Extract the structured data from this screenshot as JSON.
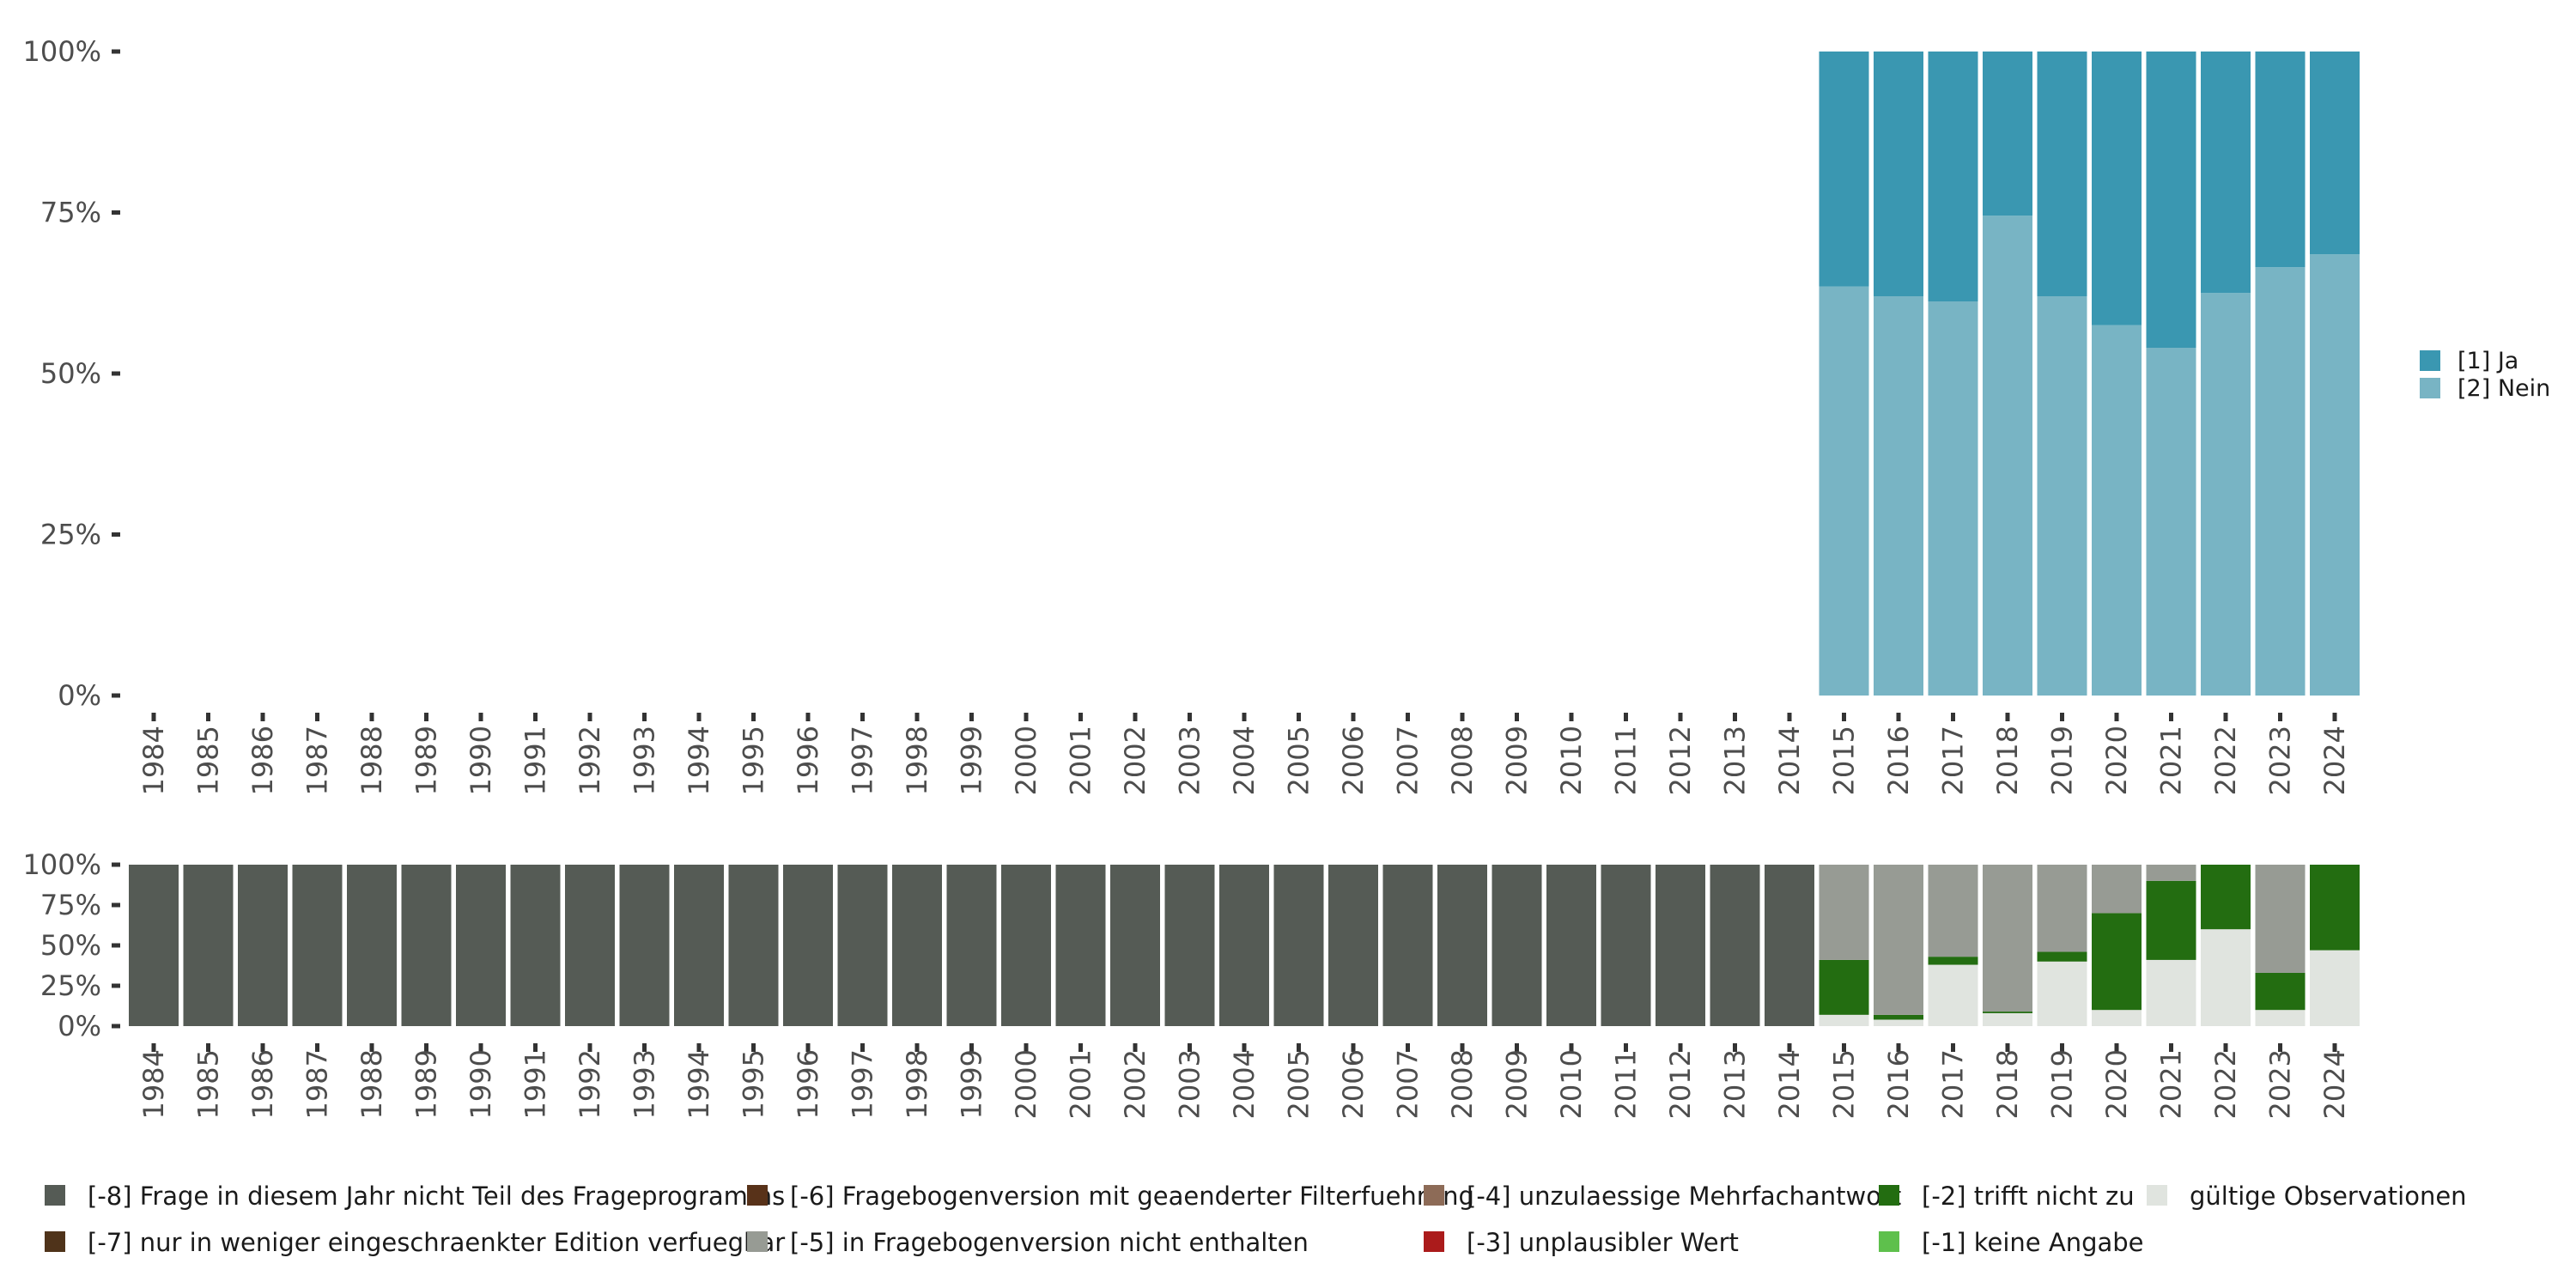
{
  "chart_data": [
    {
      "type": "bar",
      "stacked": true,
      "categories": [
        "1984",
        "1985",
        "1986",
        "1987",
        "1988",
        "1989",
        "1990",
        "1991",
        "1992",
        "1993",
        "1994",
        "1995",
        "1996",
        "1997",
        "1998",
        "1999",
        "2000",
        "2001",
        "2002",
        "2003",
        "2004",
        "2005",
        "2006",
        "2007",
        "2008",
        "2009",
        "2010",
        "2011",
        "2012",
        "2013",
        "2014",
        "2015",
        "2016",
        "2017",
        "2018",
        "2019",
        "2020",
        "2021",
        "2022",
        "2023",
        "2024"
      ],
      "ylim": [
        0,
        1
      ],
      "yticks": [
        {
          "value": 0,
          "label": "0%"
        },
        {
          "value": 0.25,
          "label": "25%"
        },
        {
          "value": 0.5,
          "label": "50%"
        },
        {
          "value": 0.75,
          "label": "75%"
        },
        {
          "value": 1,
          "label": "100%"
        }
      ],
      "series": [
        {
          "name": "[2] Nein",
          "color": "#78b4c4",
          "values": [
            0,
            0,
            0,
            0,
            0,
            0,
            0,
            0,
            0,
            0,
            0,
            0,
            0,
            0,
            0,
            0,
            0,
            0,
            0,
            0,
            0,
            0,
            0,
            0,
            0,
            0,
            0,
            0,
            0,
            0,
            0,
            0.635,
            0.62,
            0.612,
            0.745,
            0.62,
            0.575,
            0.54,
            0.625,
            0.665,
            0.685
          ]
        },
        {
          "name": "[1] Ja",
          "color": "#3a97b1",
          "values": [
            0,
            0,
            0,
            0,
            0,
            0,
            0,
            0,
            0,
            0,
            0,
            0,
            0,
            0,
            0,
            0,
            0,
            0,
            0,
            0,
            0,
            0,
            0,
            0,
            0,
            0,
            0,
            0,
            0,
            0,
            0,
            0.365,
            0.38,
            0.388,
            0.255,
            0.38,
            0.425,
            0.46,
            0.375,
            0.335,
            0.315
          ]
        }
      ],
      "legend": {
        "position": "right",
        "entries": [
          {
            "label": "[1] Ja",
            "color": "#3a97b1"
          },
          {
            "label": "[2] Nein",
            "color": "#78b4c4"
          }
        ]
      },
      "grid": false
    },
    {
      "type": "bar",
      "stacked": true,
      "categories": [
        "1984",
        "1985",
        "1986",
        "1987",
        "1988",
        "1989",
        "1990",
        "1991",
        "1992",
        "1993",
        "1994",
        "1995",
        "1996",
        "1997",
        "1998",
        "1999",
        "2000",
        "2001",
        "2002",
        "2003",
        "2004",
        "2005",
        "2006",
        "2007",
        "2008",
        "2009",
        "2010",
        "2011",
        "2012",
        "2013",
        "2014",
        "2015",
        "2016",
        "2017",
        "2018",
        "2019",
        "2020",
        "2021",
        "2022",
        "2023",
        "2024"
      ],
      "ylim": [
        0,
        1
      ],
      "yticks": [
        {
          "value": 0,
          "label": "0%"
        },
        {
          "value": 0.25,
          "label": "25%"
        },
        {
          "value": 0.5,
          "label": "50%"
        },
        {
          "value": 0.75,
          "label": "75%"
        },
        {
          "value": 1,
          "label": "100%"
        }
      ],
      "series": [
        {
          "name": "gültige Observationen",
          "color": "#e0e4df",
          "values": [
            0,
            0,
            0,
            0,
            0,
            0,
            0,
            0,
            0,
            0,
            0,
            0,
            0,
            0,
            0,
            0,
            0,
            0,
            0,
            0,
            0,
            0,
            0,
            0,
            0,
            0,
            0,
            0,
            0,
            0,
            0,
            0.07,
            0.04,
            0.38,
            0.08,
            0.4,
            0.1,
            0.41,
            0.6,
            0.1,
            0.47
          ]
        },
        {
          "name": "[-2] trifft nicht zu",
          "color": "#236d11",
          "values": [
            0,
            0,
            0,
            0,
            0,
            0,
            0,
            0,
            0,
            0,
            0,
            0,
            0,
            0,
            0,
            0,
            0,
            0,
            0,
            0,
            0,
            0,
            0,
            0,
            0,
            0,
            0,
            0,
            0,
            0,
            0,
            0.34,
            0.03,
            0.05,
            0.01,
            0.06,
            0.6,
            0.49,
            0.4,
            0.23,
            0.53
          ]
        },
        {
          "name": "[-5] in Fragebogenversion nicht enthalten",
          "color": "#979b94",
          "values": [
            0,
            0,
            0,
            0,
            0,
            0,
            0,
            0,
            0,
            0,
            0,
            0,
            0,
            0,
            0,
            0,
            0,
            0,
            0,
            0,
            0,
            0,
            0,
            0,
            0,
            0,
            0,
            0,
            0,
            0,
            0,
            0.59,
            0.93,
            0.57,
            0.91,
            0.54,
            0.3,
            0.1,
            0,
            0.67,
            0
          ]
        },
        {
          "name": "[-8] Frage in diesem Jahr nicht Teil des Frageprogramms",
          "color": "#555b55",
          "values": [
            1,
            1,
            1,
            1,
            1,
            1,
            1,
            1,
            1,
            1,
            1,
            1,
            1,
            1,
            1,
            1,
            1,
            1,
            1,
            1,
            1,
            1,
            1,
            1,
            1,
            1,
            1,
            1,
            1,
            1,
            1,
            0,
            0,
            0,
            0,
            0,
            0,
            0,
            0,
            0,
            0
          ]
        }
      ],
      "grid": false
    }
  ],
  "bottom_legend": [
    {
      "label": "[-8] Frage in diesem Jahr nicht Teil des Frageprogramms",
      "color": "#555b55"
    },
    {
      "label": "[-7] nur in weniger eingeschraenkter Edition verfuegbar",
      "color": "#4f331a"
    },
    {
      "label": "[-6] Fragebogenversion mit geaenderter Filterfuehrung",
      "color": "#583219"
    },
    {
      "label": "[-5] in Fragebogenversion nicht enthalten",
      "color": "#979b94"
    },
    {
      "label": "[-4] unzulaessige Mehrfachantwort",
      "color": "#8d6b57"
    },
    {
      "label": "[-3] unplausibler Wert",
      "color": "#ab1b1b"
    },
    {
      "label": "[-2] trifft nicht zu",
      "color": "#236d11"
    },
    {
      "label": "[-1] keine Angabe",
      "color": "#5ec04c"
    },
    {
      "label": "gültige Observationen",
      "color": "#e0e4df"
    }
  ]
}
